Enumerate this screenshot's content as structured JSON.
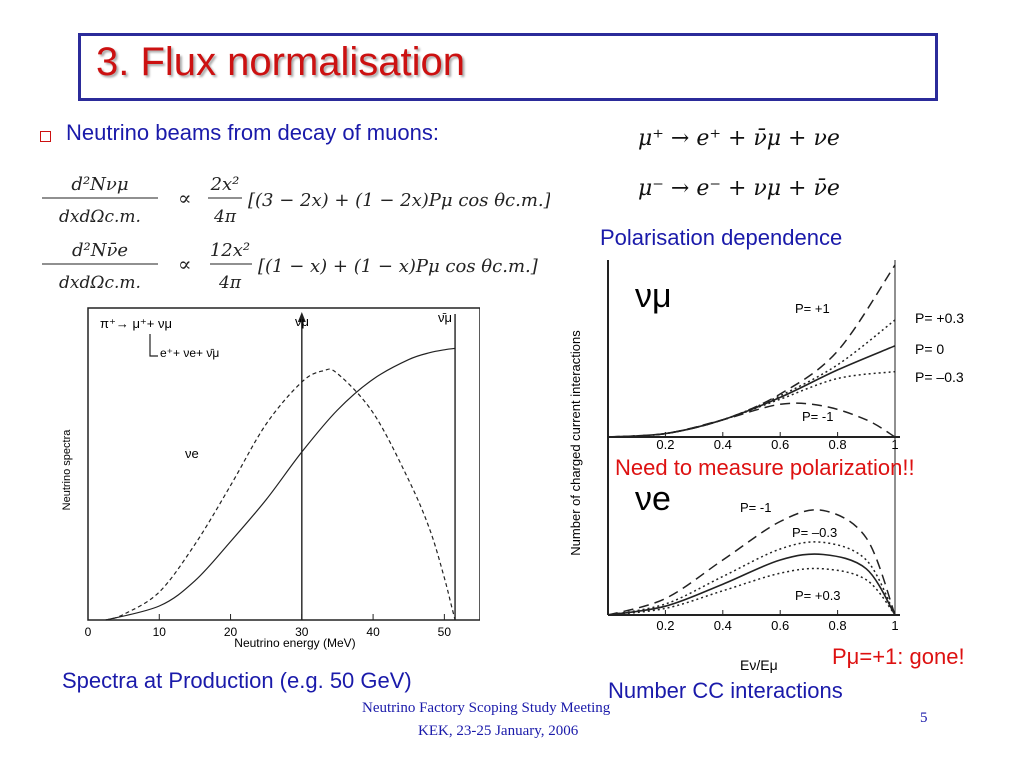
{
  "slide": {
    "title": "3. Flux normalisation",
    "bullet": "Neutrino beams from decay of muons:",
    "decay1": "μ⁺ → e⁺ + ν̄μ + νe",
    "decay2": "μ⁻ → e⁻ + νμ + ν̄e",
    "formula1": {
      "lhs_num": "d²Nνμ",
      "lhs_den": "dxdΩc.m.",
      "rhs_num": "2x²",
      "rhs_den": "4π",
      "bracket": "[(3 − 2x) + (1 − 2x)Pμ cos θc.m.]"
    },
    "formula2": {
      "lhs_num": "d²Nν̄e",
      "lhs_den": "dxdΩc.m.",
      "rhs_num": "12x²",
      "rhs_den": "4π",
      "bracket": "[(1 − x) + (1 − x)Pμ cos θc.m.]"
    },
    "proportional": "∝",
    "left_caption": "Spectra at Production (e.g. 50 GeV)",
    "pol_label": "Polarisation dependence",
    "measure_note": "Need to measure polarization!!",
    "gone_note": "Pμ=+1: gone!",
    "right_caption": "Number CC interactions",
    "footer_line1": "Neutrino Factory Scoping Study Meeting",
    "footer_line2": "KEK, 23-25 January, 2006",
    "page_number": "5"
  },
  "chart_data": [
    {
      "type": "line",
      "xlabel": "Neutrino energy (MeV)",
      "ylabel": "Neutrino spectra",
      "xlim": [
        0,
        55
      ],
      "ylim": [
        0,
        1
      ],
      "xticks": [
        "0",
        "10",
        "20",
        "30",
        "40",
        "50"
      ],
      "annotations": [
        "π⁺→ μ⁺+ νμ",
        "e⁺+ νe+ ν̄μ",
        "νμ",
        "ν̄μ",
        "νe"
      ],
      "series": [
        {
          "name": "νe",
          "style": "dashed",
          "x": [
            2.5,
            5,
            10,
            15,
            20,
            25,
            30,
            33,
            35,
            40,
            45,
            48,
            50,
            51,
            51.5
          ],
          "y": [
            0,
            0.02,
            0.1,
            0.27,
            0.48,
            0.7,
            0.85,
            0.89,
            0.88,
            0.74,
            0.5,
            0.32,
            0.15,
            0.05,
            0
          ]
        },
        {
          "name": "νμ",
          "style": "solid",
          "x": [
            2.5,
            10,
            15,
            20,
            25,
            30,
            35,
            40,
            45,
            48,
            50,
            51.5
          ],
          "y": [
            0,
            0.05,
            0.14,
            0.28,
            0.43,
            0.6,
            0.75,
            0.86,
            0.93,
            0.955,
            0.965,
            0.97
          ]
        }
      ],
      "vlines": [
        30,
        51.5
      ]
    },
    {
      "type": "line",
      "title": "νμ",
      "xlabel": "Eν/Eμ",
      "ylabel": "Number of charged current interactions",
      "xlim": [
        0,
        1
      ],
      "xticks": [
        "0.2",
        "0.4",
        "0.6",
        "0.8",
        "1"
      ],
      "series": [
        {
          "name": "P= +1",
          "style": "long-dash",
          "x": [
            0,
            0.2,
            0.4,
            0.6,
            0.8,
            1
          ],
          "y": [
            0,
            0.02,
            0.1,
            0.25,
            0.5,
            1.0
          ]
        },
        {
          "name": "P= +0.3",
          "style": "dotted",
          "x": [
            0,
            0.2,
            0.4,
            0.6,
            0.8,
            1
          ],
          "y": [
            0,
            0.02,
            0.1,
            0.24,
            0.42,
            0.68
          ]
        },
        {
          "name": "P= 0",
          "style": "solid",
          "x": [
            0,
            0.2,
            0.4,
            0.6,
            0.8,
            1
          ],
          "y": [
            0,
            0.02,
            0.1,
            0.23,
            0.39,
            0.53
          ]
        },
        {
          "name": "P= –0.3",
          "style": "dotted",
          "x": [
            0,
            0.2,
            0.4,
            0.6,
            0.8,
            1
          ],
          "y": [
            0,
            0.02,
            0.1,
            0.22,
            0.34,
            0.38
          ]
        },
        {
          "name": "P= -1",
          "style": "long-dash",
          "x": [
            0,
            0.2,
            0.4,
            0.6,
            0.75,
            0.9,
            1
          ],
          "y": [
            0,
            0.02,
            0.1,
            0.19,
            0.18,
            0.1,
            0
          ]
        }
      ]
    },
    {
      "type": "line",
      "title": "νe",
      "xlabel": "Eν/Eμ",
      "ylabel": "Number of charged current interactions",
      "xlim": [
        0,
        1
      ],
      "xticks": [
        "0.2",
        "0.4",
        "0.6",
        "0.8",
        "1"
      ],
      "series": [
        {
          "name": "P= -1",
          "style": "long-dash",
          "x": [
            0,
            0.2,
            0.4,
            0.6,
            0.75,
            0.9,
            1
          ],
          "y": [
            0,
            0.15,
            0.5,
            0.85,
            0.95,
            0.7,
            0
          ]
        },
        {
          "name": "P= –0.3",
          "style": "dotted",
          "x": [
            0,
            0.2,
            0.4,
            0.6,
            0.75,
            0.9,
            1
          ],
          "y": [
            0,
            0.1,
            0.35,
            0.6,
            0.66,
            0.5,
            0
          ]
        },
        {
          "name": "P= 0",
          "style": "solid",
          "x": [
            0,
            0.2,
            0.4,
            0.6,
            0.75,
            0.9,
            1
          ],
          "y": [
            0,
            0.08,
            0.28,
            0.5,
            0.55,
            0.42,
            0
          ]
        },
        {
          "name": "P= +0.3",
          "style": "dotted",
          "x": [
            0,
            0.2,
            0.4,
            0.6,
            0.75,
            0.9,
            1
          ],
          "y": [
            0,
            0.06,
            0.22,
            0.38,
            0.42,
            0.32,
            0
          ]
        }
      ]
    }
  ]
}
